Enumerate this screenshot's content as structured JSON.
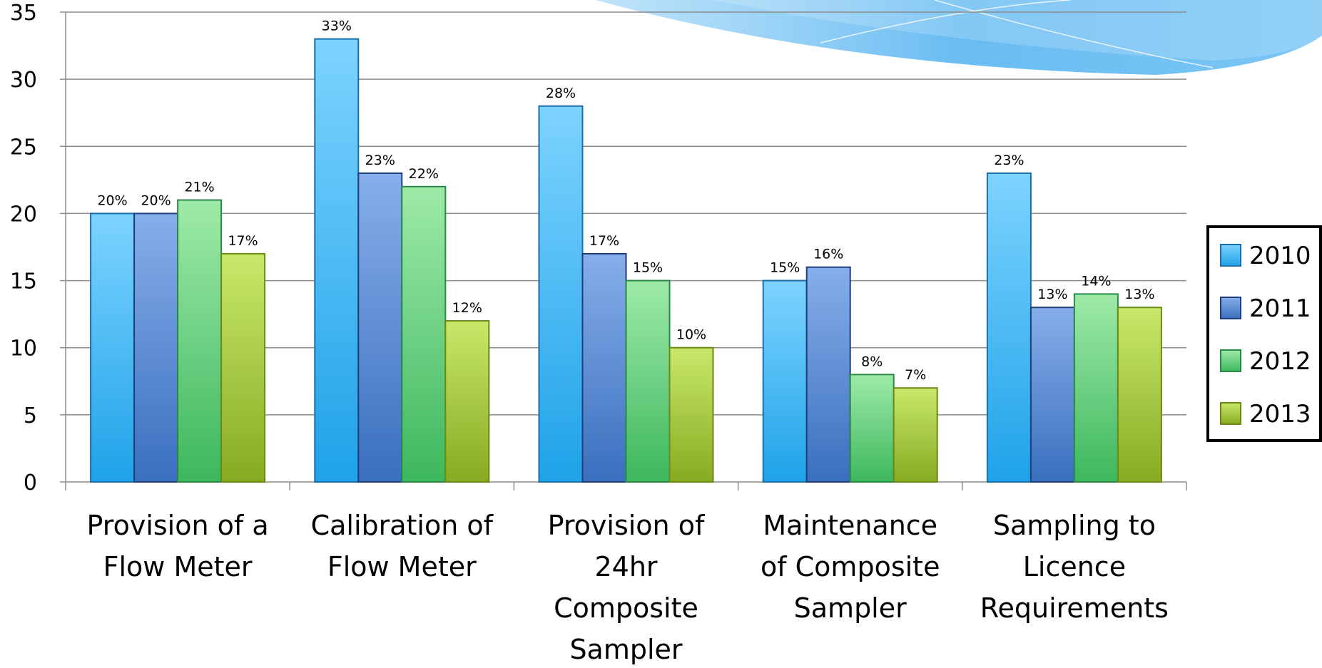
{
  "chart_data": {
    "type": "bar",
    "title": "",
    "xlabel": "",
    "ylabel": "",
    "ylim": [
      0,
      35
    ],
    "yticks": [
      0,
      5,
      10,
      15,
      20,
      25,
      30,
      35
    ],
    "grid": true,
    "legend_position": "right",
    "categories": [
      [
        "Provision of a",
        "Flow Meter"
      ],
      [
        "Calibration of",
        "Flow Meter"
      ],
      [
        "Provision of",
        "24hr",
        "Composite",
        "Sampler"
      ],
      [
        "Maintenance",
        "of Composite",
        "Sampler"
      ],
      [
        "Sampling to",
        "Licence",
        "Requirements"
      ]
    ],
    "series": [
      {
        "name": "2010",
        "values": [
          20,
          33,
          28,
          15,
          23
        ],
        "labels": [
          "20%",
          "33%",
          "28%",
          "15%",
          "23%"
        ],
        "color": "#3CB4EE"
      },
      {
        "name": "2011",
        "values": [
          20,
          23,
          17,
          16,
          13
        ],
        "labels": [
          "20%",
          "23%",
          "17%",
          "16%",
          "13%"
        ],
        "color": "#4F86D2"
      },
      {
        "name": "2012",
        "values": [
          21,
          22,
          15,
          8,
          14
        ],
        "labels": [
          "21%",
          "22%",
          "15%",
          "8%",
          "14%"
        ],
        "color": "#5CCB78"
      },
      {
        "name": "2013",
        "values": [
          17,
          12,
          10,
          7,
          13
        ],
        "labels": [
          "17%",
          "12%",
          "10%",
          "7%",
          "13%"
        ],
        "color": "#A3C93A"
      }
    ]
  }
}
